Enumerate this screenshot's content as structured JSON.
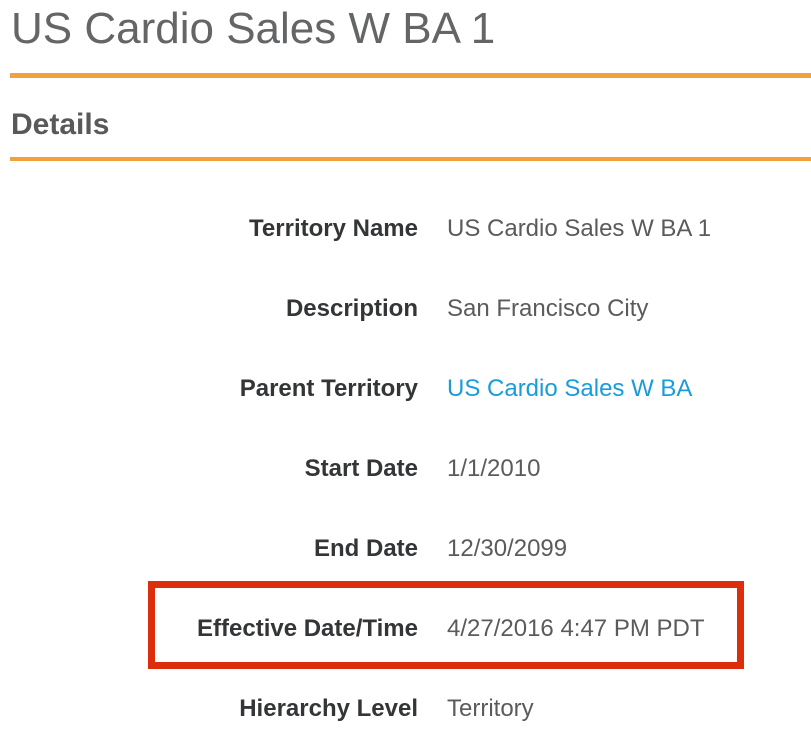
{
  "page": {
    "title": "US Cardio Sales W BA 1",
    "section_title": "Details"
  },
  "colors": {
    "accent_orange": "#f3a13d",
    "highlight_red": "#dc2e0c",
    "link_blue": "#1a9cd8"
  },
  "details": {
    "fields": [
      {
        "label": "Territory Name",
        "value": "US Cardio Sales W BA 1",
        "type": "text",
        "highlighted": false
      },
      {
        "label": "Description",
        "value": "San Francisco City",
        "type": "text",
        "highlighted": false
      },
      {
        "label": "Parent Territory",
        "value": "US Cardio Sales W BA",
        "type": "link",
        "highlighted": false
      },
      {
        "label": "Start Date",
        "value": "1/1/2010",
        "type": "text",
        "highlighted": false
      },
      {
        "label": "End Date",
        "value": "12/30/2099",
        "type": "text",
        "highlighted": false
      },
      {
        "label": "Effective Date/Time",
        "value": "4/27/2016 4:47 PM PDT",
        "type": "text",
        "highlighted": true
      },
      {
        "label": "Hierarchy Level",
        "value": "Territory",
        "type": "text",
        "highlighted": false
      }
    ]
  }
}
